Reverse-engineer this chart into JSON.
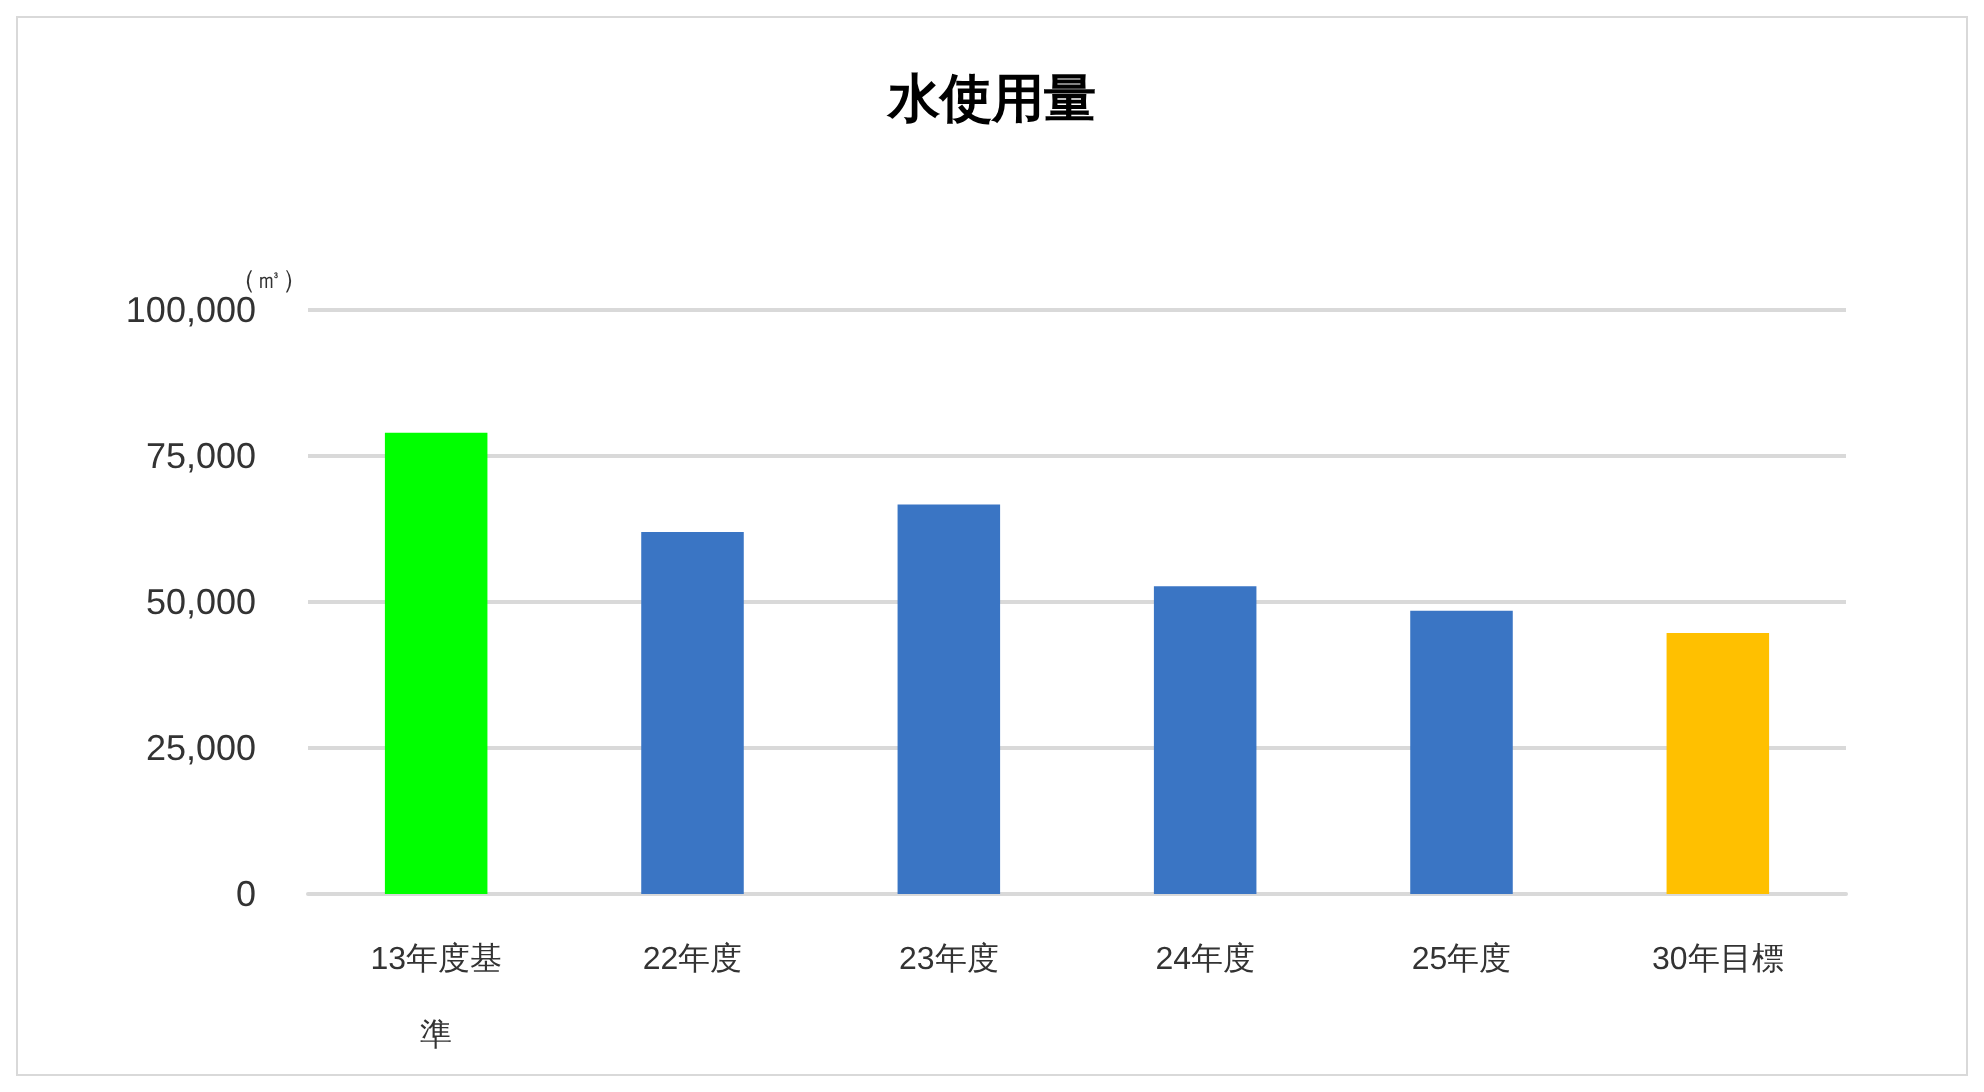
{
  "chart_data": {
    "type": "bar",
    "title": "水使用量",
    "ylabel": "（㎥）",
    "categories": [
      "13年度基準",
      "22年度",
      "23年度",
      "24年度",
      "25年度",
      "30年目標"
    ],
    "values": [
      79000,
      62000,
      66700,
      52700,
      48500,
      44700
    ],
    "colors": [
      "#00ff00",
      "#3a75c4",
      "#3a75c4",
      "#3a75c4",
      "#3a75c4",
      "#ffc000"
    ],
    "ylim": [
      0,
      100000
    ],
    "yticks": [
      0,
      {
        "value": 25000,
        "label": "25,000"
      },
      {
        "value": 50000,
        "label": "50,000"
      },
      {
        "value": 75000,
        "label": "75,000"
      },
      {
        "value": 100000,
        "label": "100,000"
      }
    ],
    "grid": "y"
  }
}
